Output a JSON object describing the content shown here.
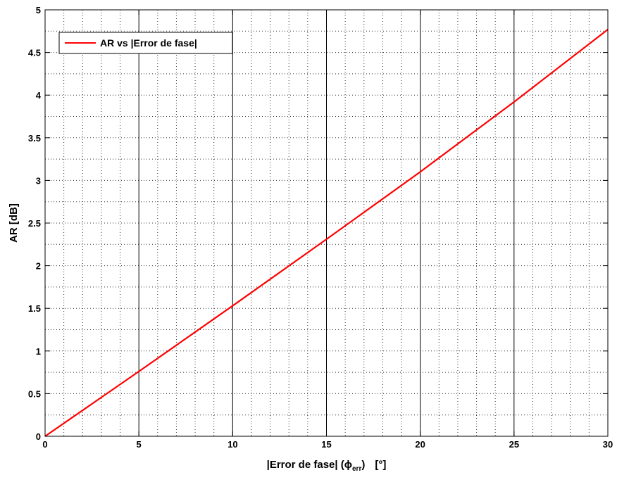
{
  "chart_data": {
    "type": "line",
    "title": "",
    "xlabel": "|Error de fase| (ϕerr)   [°]",
    "xlabel_parts": {
      "main": "|Error de fase| (ϕ",
      "sub": "err",
      "close": ")",
      "unit": "[°]"
    },
    "ylabel": "AR [dB]",
    "xlim": [
      0,
      30
    ],
    "ylim": [
      0,
      5
    ],
    "x_ticks": [
      0,
      5,
      10,
      15,
      20,
      25,
      30
    ],
    "x_tick_labels": [
      "0",
      "5",
      "10",
      "15",
      "20",
      "25",
      "30"
    ],
    "y_ticks": [
      0,
      0.5,
      1,
      1.5,
      2,
      2.5,
      3,
      3.5,
      4,
      4.5,
      5
    ],
    "y_tick_labels": [
      "0",
      "0.5",
      "1",
      "1.5",
      "2",
      "2.5",
      "3",
      "3.5",
      "4",
      "4.5",
      "5"
    ],
    "grid": true,
    "grid_style": "major solid vertical, minor dotted",
    "legend_position": "top-left",
    "series": [
      {
        "name": "AR vs |Error de fase|",
        "color": "#ff0000",
        "x": [
          0,
          5,
          10,
          15,
          20,
          25,
          30
        ],
        "y": [
          0,
          0.76,
          1.53,
          2.31,
          3.1,
          3.92,
          4.77
        ]
      }
    ]
  }
}
